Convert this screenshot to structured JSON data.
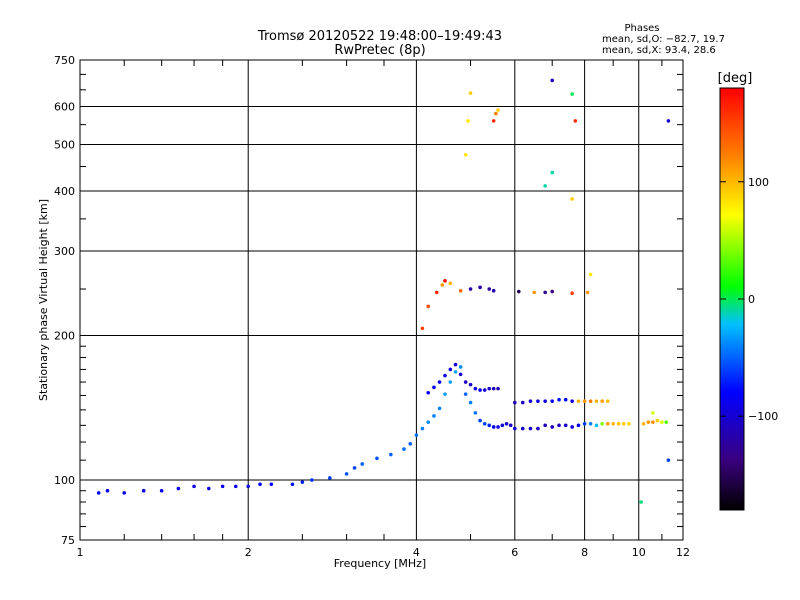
{
  "chart_data": {
    "type": "scatter",
    "title": "Tromsø 20120522 19:48:00–19:49:43",
    "subtitle": "RwPretec (8p)",
    "xlabel": "Frequency [MHz]",
    "ylabel": "Stationary phase Virtual Height [km]",
    "xscale": "log",
    "yscale": "log",
    "xlim": [
      1,
      12
    ],
    "ylim": [
      75,
      750
    ],
    "x_ticks": [
      1,
      2,
      4,
      6,
      8,
      10,
      12
    ],
    "x_tick_labels": [
      "1",
      "2",
      "4",
      "6",
      "8",
      "10",
      "12"
    ],
    "y_ticks": [
      75,
      100,
      200,
      300,
      400,
      500,
      600,
      750
    ],
    "y_tick_labels": [
      "75",
      "100",
      "200",
      "300",
      "400",
      "500",
      "600",
      "750"
    ],
    "grid": true,
    "colorbar": {
      "label": "[deg]",
      "range": [
        -180,
        180
      ],
      "ticks": [
        100,
        0,
        -100
      ],
      "tick_labels": [
        "100",
        "0",
        "−100"
      ]
    },
    "stats": {
      "title": "Phases",
      "line1": "mean, sd,O: −82.7, 19.7",
      "line2": "mean, sd,X:  93.4, 28.6"
    },
    "series": [
      {
        "x": [
          1.08,
          1.12,
          1.2,
          1.3,
          1.4,
          1.5,
          1.6,
          1.7,
          1.8,
          1.9,
          2.0,
          2.1,
          2.2,
          2.4,
          2.5,
          2.6,
          2.8,
          3.0,
          3.1,
          3.2,
          3.4,
          3.6,
          3.8,
          3.9,
          4.0,
          4.1,
          4.2,
          4.3,
          4.4,
          4.5,
          4.6,
          4.7,
          4.8,
          4.9,
          5.0,
          5.1,
          5.2,
          5.3,
          5.4,
          5.5,
          5.6,
          5.7,
          5.8,
          5.9,
          6.0,
          6.2,
          6.4,
          6.6,
          6.8,
          7.0,
          7.2,
          7.4,
          7.6,
          7.8,
          8.0,
          8.2,
          8.4,
          8.6,
          8.8,
          9.0,
          9.2,
          9.4,
          9.6,
          10.2,
          10.4,
          10.6,
          10.8,
          11.0,
          11.2
        ],
        "y": [
          94,
          95,
          94,
          95,
          95,
          96,
          97,
          96,
          97,
          97,
          97,
          98,
          98,
          98,
          99,
          100,
          101,
          103,
          106,
          108,
          111,
          113,
          116,
          119,
          124,
          128,
          132,
          136,
          141,
          151,
          160,
          168,
          172,
          151,
          145,
          138,
          133,
          131,
          130,
          129,
          129,
          130,
          131,
          130,
          128,
          128,
          128,
          128,
          130,
          129,
          130,
          130,
          129,
          130,
          131,
          131,
          130,
          131,
          131,
          131,
          131,
          131,
          131,
          131,
          132,
          132,
          133,
          132,
          132
        ],
        "phase": [
          -80,
          -85,
          -90,
          -95,
          -90,
          -88,
          -92,
          -95,
          -90,
          -85,
          -88,
          -80,
          -85,
          -75,
          -70,
          -65,
          -60,
          -55,
          -60,
          -50,
          -55,
          -50,
          -45,
          -50,
          -45,
          -40,
          -35,
          -40,
          -38,
          -30,
          -30,
          -30,
          -35,
          -50,
          -40,
          -45,
          -60,
          -60,
          -70,
          -80,
          -90,
          -95,
          -100,
          -105,
          -95,
          -100,
          -100,
          -110,
          -115,
          -110,
          -110,
          -105,
          -95,
          -90,
          -60,
          -40,
          -20,
          40,
          110,
          100,
          95,
          90,
          85,
          100,
          110,
          115,
          90,
          60,
          30
        ]
      },
      {
        "x": [
          4.2,
          4.3,
          4.4,
          4.5,
          4.6,
          4.7,
          4.8,
          4.9,
          5.0,
          5.1,
          5.2,
          5.3,
          5.4,
          5.5,
          5.6,
          6.0,
          6.2,
          6.4,
          6.6,
          6.8,
          7.0,
          7.2,
          7.4,
          7.6,
          7.8,
          8.0,
          8.2,
          8.4,
          8.6,
          8.8
        ],
        "y": [
          152,
          156,
          160,
          165,
          170,
          174,
          166,
          160,
          158,
          155,
          154,
          154,
          155,
          155,
          155,
          145,
          145,
          146,
          146,
          146,
          146,
          147,
          147,
          146,
          146,
          146,
          146,
          146,
          146,
          146
        ],
        "phase": [
          -85,
          -88,
          -90,
          -92,
          -95,
          -100,
          -100,
          -110,
          -105,
          -95,
          -90,
          -100,
          -105,
          -110,
          -115,
          -110,
          -105,
          -95,
          -90,
          -95,
          -80,
          -75,
          -80,
          -95,
          100,
          110,
          120,
          100,
          110,
          95
        ]
      },
      {
        "x": [
          4.1,
          4.2,
          4.35,
          4.45,
          4.5,
          4.6,
          4.8,
          5.0,
          5.2,
          5.4,
          5.5,
          6.1,
          6.5,
          6.8,
          7.0,
          7.6,
          8.1,
          8.2,
          10.1,
          10.6,
          11.3
        ],
        "y": [
          207,
          230,
          246,
          255,
          260,
          257,
          248,
          250,
          252,
          250,
          248,
          247,
          246,
          246,
          247,
          245,
          246,
          268,
          90,
          138,
          110
        ],
        "phase": [
          150,
          145,
          160,
          110,
          175,
          100,
          130,
          -120,
          -120,
          -125,
          -120,
          -155,
          110,
          -130,
          -140,
          150,
          110,
          80,
          -5,
          60,
          -60
        ]
      },
      {
        "x": [
          4.9,
          4.95,
          5.0,
          5.5,
          5.55,
          5.6,
          6.8,
          7.0,
          7.6,
          7.7,
          11.3
        ],
        "y": [
          476,
          560,
          640,
          560,
          580,
          590,
          410,
          437,
          385,
          560,
          560
        ],
        "phase": [
          80,
          80,
          90,
          160,
          120,
          90,
          -10,
          -10,
          90,
          160,
          -100
        ]
      },
      {
        "x": [
          7.0,
          7.6
        ],
        "y": [
          680,
          637
        ],
        "phase": [
          -110,
          0
        ]
      }
    ]
  }
}
